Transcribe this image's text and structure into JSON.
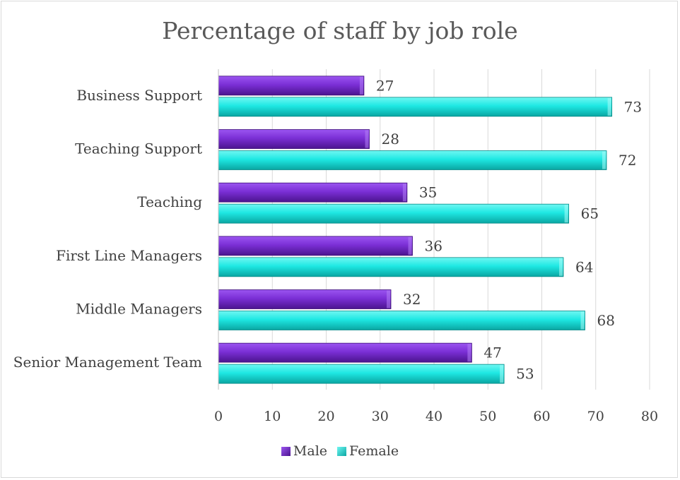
{
  "chart_data": {
    "type": "bar",
    "orientation": "horizontal",
    "title": "Percentage of staff by job role",
    "categories": [
      "Business Support",
      "Teaching Support",
      "Teaching ",
      "First Line Managers",
      "Middle Managers",
      "Senior Management Team"
    ],
    "series": [
      {
        "name": "Male",
        "values": [
          27,
          28,
          35,
          36,
          32,
          47
        ],
        "color": "#7b2fd6"
      },
      {
        "name": "Female",
        "values": [
          73,
          72,
          65,
          64,
          68,
          53
        ],
        "color": "#1ee8e3"
      }
    ],
    "xlim": [
      0,
      80
    ],
    "xticks": [
      "0",
      "10",
      "20",
      "30",
      "40",
      "50",
      "60",
      "70",
      "80"
    ],
    "grid": "vertical",
    "legend": "bottom"
  }
}
